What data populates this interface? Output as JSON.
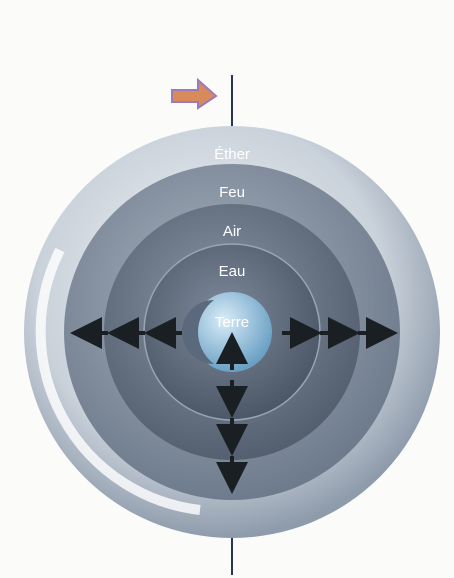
{
  "layers": [
    "Éther",
    "Feu",
    "Air",
    "Eau",
    "Terre"
  ]
}
